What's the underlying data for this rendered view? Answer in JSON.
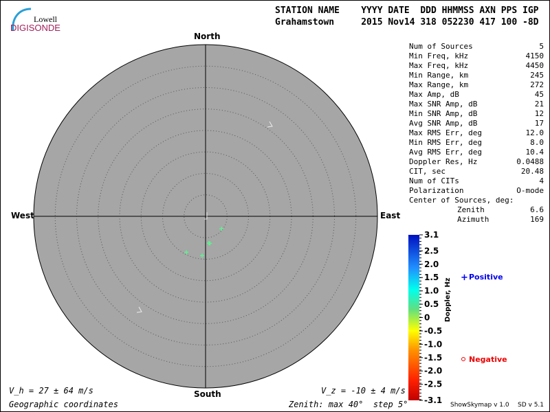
{
  "logo": {
    "line1": "Lowell",
    "line2": "DIGISONDE"
  },
  "header": {
    "columns": "STATION NAME    YYYY DATE  DDD HHMMSS AXN PPS IGP",
    "values": "Grahamstown     2015 Nov14 318 052230 417 100 -8D"
  },
  "directions": {
    "north": "North",
    "south": "South",
    "east": "East",
    "west": "West"
  },
  "stats": [
    {
      "label": "Num of Sources",
      "value": "5"
    },
    {
      "label": "Min Freq, kHz",
      "value": "4150"
    },
    {
      "label": "Max Freq, kHz",
      "value": "4450"
    },
    {
      "label": "Min Range, km",
      "value": "245"
    },
    {
      "label": "Max Range, km",
      "value": "272"
    },
    {
      "label": "Max Amp, dB",
      "value": "45"
    },
    {
      "label": "Max SNR Amp, dB",
      "value": "21"
    },
    {
      "label": "Min SNR Amp, dB",
      "value": "12"
    },
    {
      "label": "Avg SNR Amp, dB",
      "value": "17"
    },
    {
      "label": "Max RMS Err, deg",
      "value": "12.0"
    },
    {
      "label": "Min RMS Err, deg",
      "value": "8.0"
    },
    {
      "label": "Avg RMS Err, deg",
      "value": "10.4"
    },
    {
      "label": "Doppler Res, Hz",
      "value": "0.0488"
    },
    {
      "label": "CIT, sec",
      "value": "20.48"
    },
    {
      "label": "Num of CITs",
      "value": "4"
    },
    {
      "label": "Polarization",
      "value": "O-mode"
    }
  ],
  "center": {
    "title": "Center of Sources, deg:",
    "zenith_label": "Zenith",
    "zenith": "6.6",
    "azimuth_label": "Azimuth",
    "azimuth": "169"
  },
  "footer": {
    "vh": "V_h = 27 ± 64 m/s",
    "vz": "V_z = -10 ± 4 m/s",
    "coords": "Geographic coordinates",
    "zenith": "Zenith: max 40°  step 5°",
    "version1": "ShowSkymap v 1.0",
    "version2": "SD v 5.1"
  },
  "legend": {
    "positive": "Positive",
    "negative": "Negative",
    "positive_color": "#0000ee",
    "negative_color": "#ee0000"
  },
  "chart_data": {
    "type": "scatter",
    "projection": "polar skymap",
    "zenith_max_deg": 40,
    "zenith_step_deg": 5,
    "colorbar": {
      "label": "Doppler, Hz",
      "range": [
        -3.1,
        3.1
      ],
      "ticks": [
        "3.1",
        "2.5",
        "2.0",
        "1.5",
        "1.0",
        "0.5",
        "0",
        "-0.5",
        "-1.0",
        "-1.5",
        "-2.0",
        "-2.5",
        "-3.1"
      ]
    },
    "sources": [
      {
        "zenith_deg": 4.7,
        "azimuth_deg": 128,
        "doppler_hz": 0.2,
        "sign": "positive"
      },
      {
        "zenith_deg": 6.4,
        "azimuth_deg": 171,
        "doppler_hz": 0.2,
        "sign": "positive"
      },
      {
        "zenith_deg": 6.3,
        "azimuth_deg": 173,
        "doppler_hz": 0.2,
        "sign": "positive"
      },
      {
        "zenith_deg": 9.2,
        "azimuth_deg": 185,
        "doppler_hz": 0.2,
        "sign": "positive"
      },
      {
        "zenith_deg": 9.5,
        "azimuth_deg": 208,
        "doppler_hz": 0.2,
        "sign": "positive"
      }
    ]
  }
}
